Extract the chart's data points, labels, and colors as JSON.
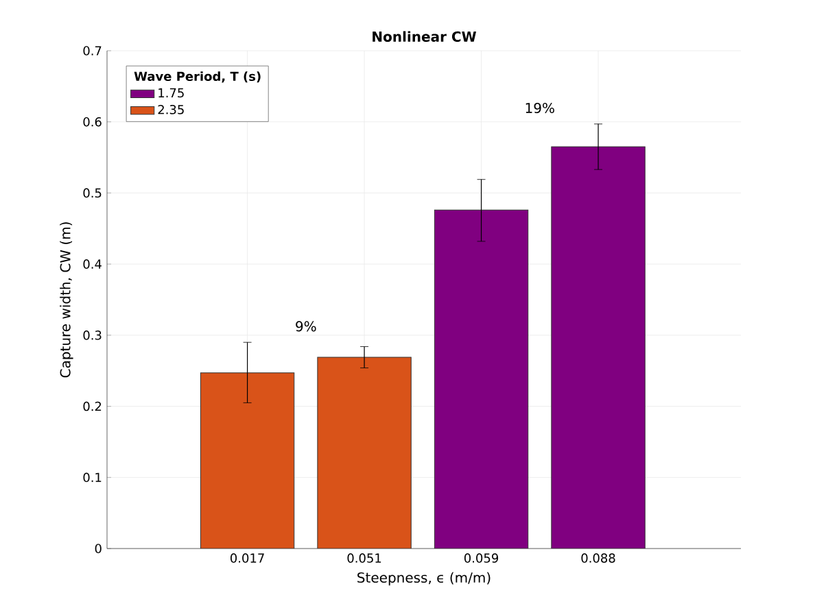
{
  "chart_data": {
    "type": "bar",
    "title": "Nonlinear CW",
    "xlabel": "Steepness, ϵ (m/m)",
    "ylabel": "Capture width, CW (m)",
    "legend_title": "Wave Period, T (s)",
    "categories": [
      "0.017",
      "0.051",
      "0.059",
      "0.088"
    ],
    "series": [
      {
        "name": "1.75",
        "color": "#800080",
        "values": [
          null,
          null,
          0.476,
          0.565
        ],
        "errors": [
          null,
          null,
          [
            0.432,
            0.519
          ],
          [
            0.533,
            0.597
          ]
        ]
      },
      {
        "name": "2.35",
        "color": "#d95319",
        "values": [
          0.247,
          0.269,
          null,
          null
        ],
        "errors": [
          [
            0.205,
            0.29
          ],
          [
            0.254,
            0.284
          ],
          null,
          null
        ]
      }
    ],
    "annotations": [
      "9%",
      "19%"
    ],
    "ylim": [
      0,
      0.7
    ],
    "yticks": [
      0,
      0.1,
      0.2,
      0.3,
      0.4,
      0.5,
      0.6,
      0.7
    ],
    "grid": true,
    "legend": "top left"
  }
}
